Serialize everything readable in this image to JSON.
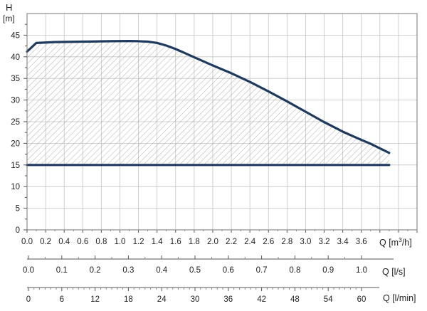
{
  "chart_data": {
    "type": "line",
    "y_axis": {
      "label": "H",
      "unit": "[m]",
      "ticks": [
        0,
        5,
        10,
        15,
        20,
        25,
        30,
        35,
        40,
        45
      ],
      "ylim": [
        0,
        50
      ]
    },
    "x_axis_primary": {
      "label": "Q [m³/h]",
      "ticks": [
        0.0,
        0.2,
        0.4,
        0.6,
        0.8,
        1.0,
        1.2,
        1.4,
        1.6,
        1.8,
        2.0,
        2.2,
        2.4,
        2.6,
        2.8,
        3.0,
        3.2,
        3.4,
        3.6
      ],
      "tick_labels": [
        "0.0",
        "0.2",
        "0.4",
        "0.6",
        "0.8",
        "1.0",
        "1.2",
        "1.4",
        "1.6",
        "1.8",
        "2.0",
        "2.2",
        "2.4",
        "2.6",
        "2.8",
        "3.0",
        "3.2",
        "3.4",
        "3.6"
      ],
      "xlim": [
        0,
        4.2
      ]
    },
    "x_axis_ls": {
      "label": "Q [l/s]",
      "tick_labels": [
        "0.0",
        "0.1",
        "0.2",
        "0.3",
        "0.4",
        "0.5",
        "0.6",
        "0.7",
        "0.8",
        "0.9",
        "1.0"
      ],
      "ticks": [
        0.0,
        0.1,
        0.2,
        0.3,
        0.4,
        0.5,
        0.6,
        0.7,
        0.8,
        0.9,
        1.0
      ]
    },
    "x_axis_lmin": {
      "label": "Q [l/min]",
      "tick_labels": [
        "0",
        "6",
        "12",
        "18",
        "24",
        "30",
        "36",
        "42",
        "48",
        "54",
        "60"
      ],
      "ticks": [
        0,
        6,
        12,
        18,
        24,
        30,
        36,
        42,
        48,
        54,
        60
      ]
    },
    "series": [
      {
        "x": [
          0.0,
          0.1,
          0.3,
          0.6,
          0.9,
          1.1,
          1.2,
          1.3,
          1.4,
          1.5,
          1.6,
          1.8,
          2.0,
          2.2,
          2.4,
          2.6,
          2.8,
          3.0,
          3.2,
          3.4,
          3.6,
          3.7,
          3.9
        ],
        "y": [
          41.2,
          43.2,
          43.4,
          43.5,
          43.6,
          43.65,
          43.6,
          43.5,
          43.2,
          42.6,
          41.8,
          39.9,
          38.0,
          36.2,
          34.2,
          32.0,
          29.7,
          27.3,
          24.9,
          22.7,
          20.8,
          19.9,
          17.8
        ],
        "color": "#1f3a5f"
      },
      {
        "x": [
          0.0,
          3.9
        ],
        "y": [
          15.0,
          15.0
        ],
        "color": "#1f3a5f"
      }
    ],
    "shaded_region": "between upper curve and H=15",
    "grid": true
  }
}
